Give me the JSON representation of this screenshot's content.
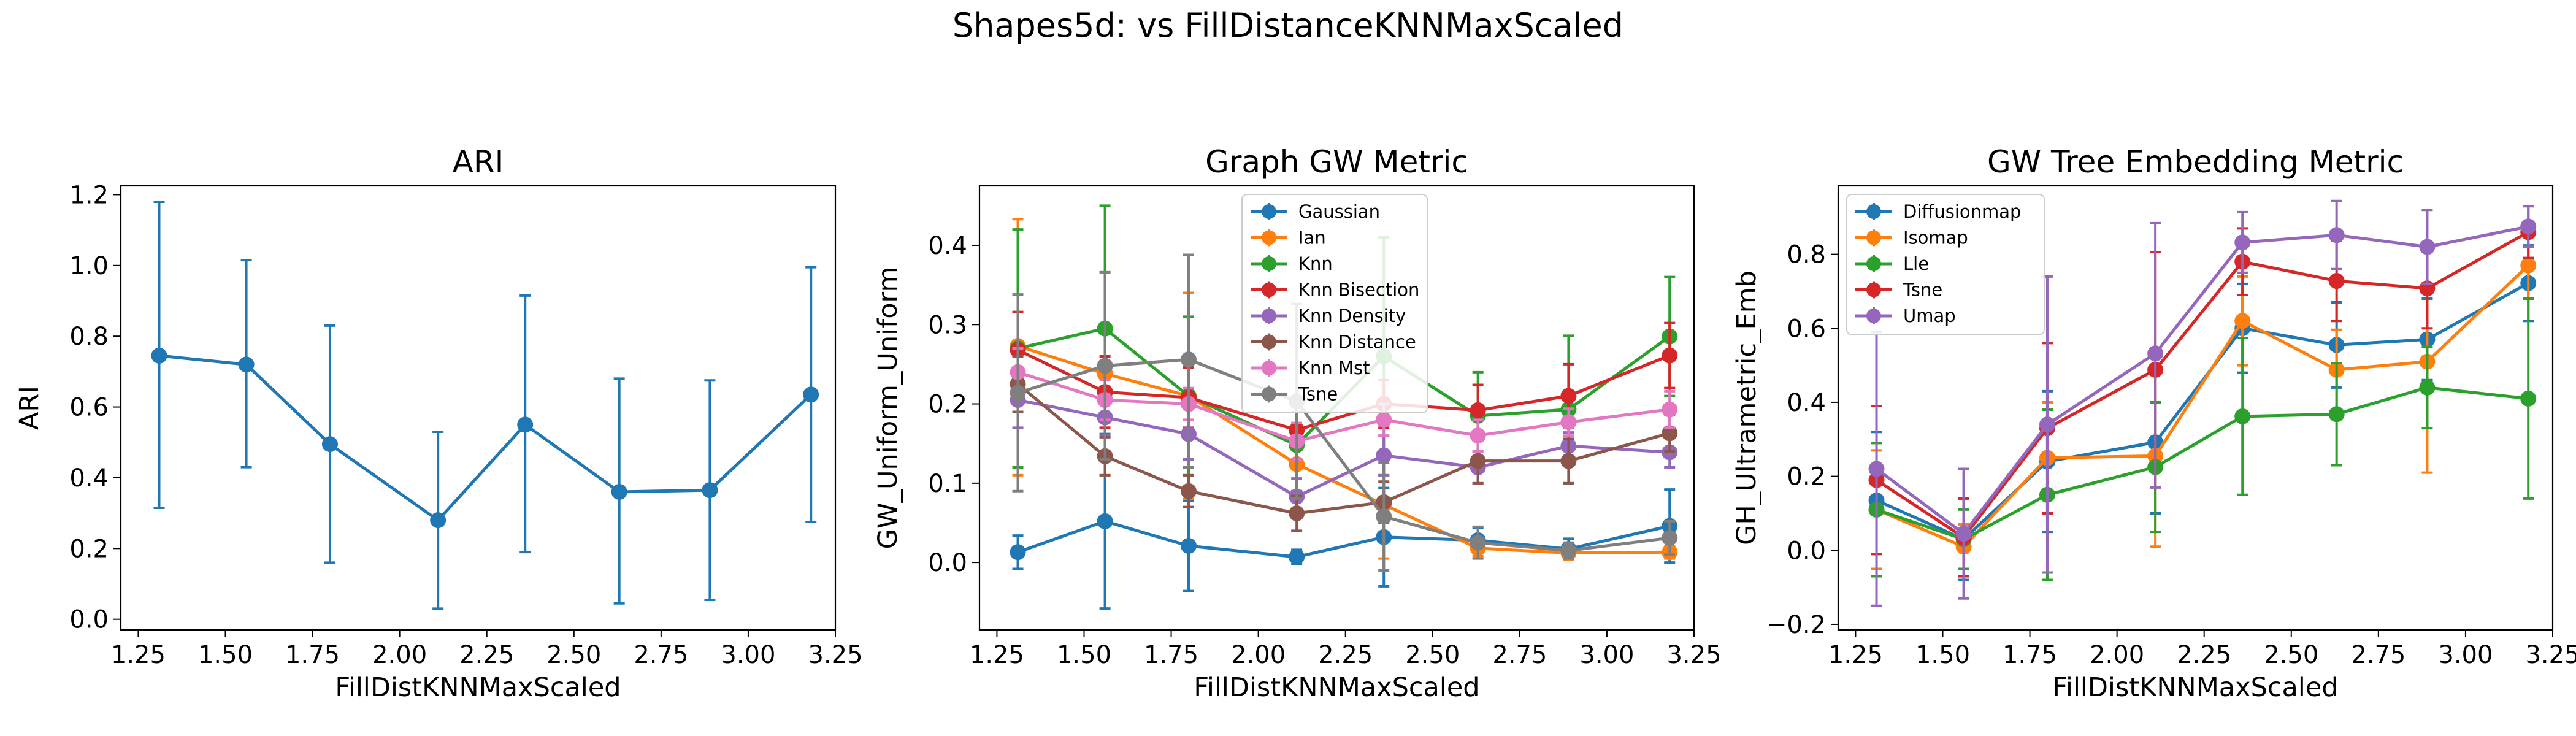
{
  "figure": {
    "title": "Shapes5d: vs FillDistanceKNNMaxScaled"
  },
  "chart_data": [
    {
      "type": "line",
      "title": "ARI",
      "xlabel": "FillDistKNNMaxScaled",
      "ylabel": "ARI",
      "xlim": [
        1.2,
        3.25
      ],
      "ylim": [
        -0.03,
        1.225
      ],
      "xticks": [
        "1.25",
        "1.50",
        "1.75",
        "2.00",
        "2.25",
        "2.50",
        "2.75",
        "3.00",
        "3.25"
      ],
      "yticks": [
        "0.0",
        "0.2",
        "0.4",
        "0.6",
        "0.8",
        "1.0",
        "1.2"
      ],
      "x": [
        1.31,
        1.56,
        1.8,
        2.11,
        2.36,
        2.63,
        2.89,
        3.18
      ],
      "legend": null,
      "series": [
        {
          "name": "ARI",
          "color": "#1f77b4",
          "values": [
            0.745,
            0.72,
            0.495,
            0.28,
            0.55,
            0.36,
            0.365,
            0.635
          ],
          "lower": [
            0.315,
            0.43,
            0.16,
            0.03,
            0.19,
            0.045,
            0.055,
            0.275
          ],
          "upper": [
            1.18,
            1.015,
            0.83,
            0.53,
            0.915,
            0.68,
            0.675,
            0.995
          ]
        }
      ]
    },
    {
      "type": "line",
      "title": "Graph GW Metric",
      "xlabel": "FillDistKNNMaxScaled",
      "ylabel": "GW_Uniform_Uniform",
      "xlim": [
        1.2,
        3.25
      ],
      "ylim": [
        -0.085,
        0.475
      ],
      "xticks": [
        "1.25",
        "1.50",
        "1.75",
        "2.00",
        "2.25",
        "2.50",
        "2.75",
        "3.00",
        "3.25"
      ],
      "yticks": [
        "0.0",
        "0.1",
        "0.2",
        "0.3",
        "0.4"
      ],
      "x": [
        1.31,
        1.56,
        1.8,
        2.11,
        2.36,
        2.63,
        2.89,
        3.18
      ],
      "legend": "upper-center",
      "series": [
        {
          "name": "Gaussian",
          "color": "#1f77b4",
          "values": [
            0.013,
            0.052,
            0.021,
            0.007,
            0.032,
            0.028,
            0.017,
            0.046
          ],
          "lower": [
            -0.008,
            -0.058,
            -0.036,
            -0.002,
            -0.03,
            0.012,
            0.004,
            0.0
          ],
          "upper": [
            0.034,
            0.162,
            0.078,
            0.016,
            0.094,
            0.044,
            0.03,
            0.092
          ]
        },
        {
          "name": "Ian",
          "color": "#ff7f0e",
          "values": [
            0.273,
            0.238,
            0.21,
            0.124,
            0.073,
            0.018,
            0.012,
            0.013
          ],
          "lower": [
            0.11,
            0.11,
            0.08,
            0.06,
            0.005,
            0.008,
            0.004,
            0.005
          ],
          "upper": [
            0.433,
            0.366,
            0.34,
            0.19,
            0.141,
            0.028,
            0.02,
            0.021
          ]
        },
        {
          "name": "Knn",
          "color": "#2ca02c",
          "values": [
            0.27,
            0.295,
            0.21,
            0.148,
            0.26,
            0.185,
            0.193,
            0.285
          ],
          "lower": [
            0.12,
            0.14,
            0.11,
            0.09,
            0.11,
            0.13,
            0.1,
            0.21
          ],
          "upper": [
            0.42,
            0.45,
            0.31,
            0.206,
            0.41,
            0.24,
            0.286,
            0.36
          ]
        },
        {
          "name": "Knn Bisection",
          "color": "#d62728",
          "values": [
            0.268,
            0.215,
            0.208,
            0.167,
            0.2,
            0.192,
            0.21,
            0.261
          ],
          "lower": [
            0.22,
            0.17,
            0.17,
            0.13,
            0.17,
            0.16,
            0.17,
            0.22
          ],
          "upper": [
            0.316,
            0.26,
            0.246,
            0.204,
            0.23,
            0.224,
            0.25,
            0.302
          ]
        },
        {
          "name": "Knn Density",
          "color": "#9467bd",
          "values": [
            0.205,
            0.183,
            0.162,
            0.083,
            0.135,
            0.12,
            0.147,
            0.139
          ],
          "lower": [
            0.17,
            0.16,
            0.13,
            0.06,
            0.11,
            0.1,
            0.13,
            0.12
          ],
          "upper": [
            0.24,
            0.206,
            0.194,
            0.106,
            0.16,
            0.14,
            0.164,
            0.158
          ]
        },
        {
          "name": "Knn Distance",
          "color": "#8c564b",
          "values": [
            0.225,
            0.134,
            0.09,
            0.062,
            0.076,
            0.128,
            0.128,
            0.163
          ],
          "lower": [
            0.19,
            0.11,
            0.07,
            0.04,
            0.05,
            0.1,
            0.1,
            0.14
          ],
          "upper": [
            0.26,
            0.158,
            0.11,
            0.084,
            0.102,
            0.156,
            0.156,
            0.186
          ]
        },
        {
          "name": "Knn Mst",
          "color": "#e377c2",
          "values": [
            0.24,
            0.205,
            0.2,
            0.153,
            0.18,
            0.16,
            0.177,
            0.193
          ],
          "lower": [
            0.21,
            0.18,
            0.18,
            0.13,
            0.16,
            0.14,
            0.16,
            0.17
          ],
          "upper": [
            0.27,
            0.23,
            0.22,
            0.176,
            0.2,
            0.18,
            0.194,
            0.216
          ]
        },
        {
          "name": "Tsne",
          "color": "#7f7f7f",
          "values": [
            0.214,
            0.248,
            0.256,
            0.203,
            0.058,
            0.025,
            0.015,
            0.031
          ],
          "lower": [
            0.09,
            0.13,
            0.12,
            0.08,
            -0.01,
            0.005,
            0.005,
            0.01
          ],
          "upper": [
            0.338,
            0.366,
            0.388,
            0.326,
            0.126,
            0.045,
            0.025,
            0.052
          ]
        }
      ]
    },
    {
      "type": "line",
      "title": "GW Tree Embedding Metric",
      "xlabel": "FillDistKNNMaxScaled",
      "ylabel": "GH_Ultrametric_Emb",
      "xlim": [
        1.2,
        3.25
      ],
      "ylim": [
        -0.215,
        0.985
      ],
      "xticks": [
        "1.25",
        "1.50",
        "1.75",
        "2.00",
        "2.25",
        "2.50",
        "2.75",
        "3.00",
        "3.25"
      ],
      "yticks": [
        "−0.2",
        "0.0",
        "0.2",
        "0.4",
        "0.6",
        "0.8"
      ],
      "x": [
        1.31,
        1.56,
        1.8,
        2.11,
        2.36,
        2.63,
        2.89,
        3.18
      ],
      "legend": "upper-left",
      "series": [
        {
          "name": "Diffusionmap",
          "color": "#1f77b4",
          "values": [
            0.135,
            0.03,
            0.24,
            0.292,
            0.6,
            0.555,
            0.57,
            0.722
          ],
          "lower": [
            -0.05,
            -0.08,
            0.05,
            0.1,
            0.48,
            0.44,
            0.46,
            0.62
          ],
          "upper": [
            0.32,
            0.14,
            0.43,
            0.484,
            0.72,
            0.67,
            0.68,
            0.824
          ]
        },
        {
          "name": "Isomap",
          "color": "#ff7f0e",
          "values": [
            0.11,
            0.01,
            0.25,
            0.255,
            0.62,
            0.488,
            0.51,
            0.77
          ],
          "lower": [
            -0.05,
            -0.05,
            0.1,
            0.01,
            0.5,
            0.38,
            0.21,
            0.68
          ],
          "upper": [
            0.27,
            0.07,
            0.4,
            0.5,
            0.74,
            0.596,
            0.81,
            0.86
          ]
        },
        {
          "name": "Lle",
          "color": "#2ca02c",
          "values": [
            0.11,
            0.03,
            0.15,
            0.225,
            0.362,
            0.368,
            0.44,
            0.41
          ],
          "lower": [
            -0.07,
            -0.05,
            -0.08,
            0.05,
            0.15,
            0.23,
            0.33,
            0.14
          ],
          "upper": [
            0.29,
            0.11,
            0.38,
            0.4,
            0.574,
            0.506,
            0.55,
            0.68
          ]
        },
        {
          "name": "Tsne",
          "color": "#d62728",
          "values": [
            0.19,
            0.035,
            0.33,
            0.488,
            0.78,
            0.728,
            0.708,
            0.86
          ],
          "lower": [
            -0.01,
            -0.07,
            0.1,
            0.17,
            0.69,
            0.62,
            0.6,
            0.79
          ],
          "upper": [
            0.39,
            0.14,
            0.56,
            0.806,
            0.87,
            0.836,
            0.816,
            0.93
          ]
        },
        {
          "name": "Umap",
          "color": "#9467bd",
          "values": [
            0.22,
            0.045,
            0.34,
            0.532,
            0.832,
            0.852,
            0.82,
            0.875
          ],
          "lower": [
            -0.15,
            -0.13,
            -0.06,
            0.17,
            0.75,
            0.76,
            0.72,
            0.82
          ],
          "upper": [
            0.59,
            0.22,
            0.74,
            0.884,
            0.914,
            0.944,
            0.92,
            0.93
          ]
        }
      ]
    }
  ]
}
